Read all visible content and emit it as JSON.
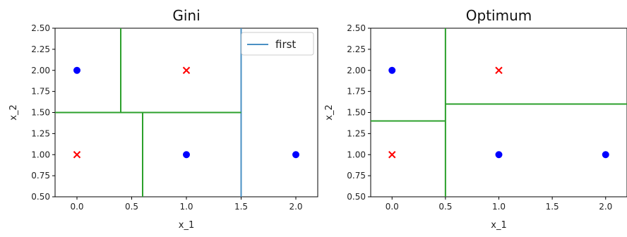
{
  "chart_data": [
    {
      "type": "scatter",
      "title": "Gini",
      "xlabel": "x_1",
      "ylabel": "x_2",
      "xlim": [
        -0.2,
        2.2
      ],
      "ylim": [
        0.5,
        2.5
      ],
      "xticks": [
        "0.0",
        "0.5",
        "1.0",
        "1.5",
        "2.0"
      ],
      "yticks": [
        "0.50",
        "0.75",
        "1.00",
        "1.25",
        "1.50",
        "1.75",
        "2.00",
        "2.25",
        "2.50"
      ],
      "points_circle": [
        {
          "x": 0,
          "y": 2
        },
        {
          "x": 1,
          "y": 1
        },
        {
          "x": 2,
          "y": 1
        }
      ],
      "points_cross": [
        {
          "x": 0,
          "y": 1
        },
        {
          "x": 1,
          "y": 2
        }
      ],
      "boundaries": [
        {
          "x1": 1.5,
          "y1": 0.5,
          "x2": 1.5,
          "y2": 2.5,
          "color": "#4a90c4"
        },
        {
          "x1": -0.2,
          "y1": 1.5,
          "x2": 1.5,
          "y2": 1.5,
          "color": "#2ca02c"
        },
        {
          "x1": 0.4,
          "y1": 1.5,
          "x2": 0.4,
          "y2": 2.5,
          "color": "#2ca02c"
        },
        {
          "x1": 0.6,
          "y1": 0.5,
          "x2": 0.6,
          "y2": 1.5,
          "color": "#2ca02c"
        }
      ],
      "legend": [
        {
          "label": "first",
          "color": "#4a90c4"
        }
      ],
      "legend_position": "top-right"
    },
    {
      "type": "scatter",
      "title": "Optimum",
      "xlabel": "x_1",
      "ylabel": "x_2",
      "xlim": [
        -0.2,
        2.2
      ],
      "ylim": [
        0.5,
        2.5
      ],
      "xticks": [
        "0.0",
        "0.5",
        "1.0",
        "1.5",
        "2.0"
      ],
      "yticks": [
        "0.50",
        "0.75",
        "1.00",
        "1.25",
        "1.50",
        "1.75",
        "2.00",
        "2.25",
        "2.50"
      ],
      "points_circle": [
        {
          "x": 0,
          "y": 2
        },
        {
          "x": 1,
          "y": 1
        },
        {
          "x": 2,
          "y": 1
        }
      ],
      "points_cross": [
        {
          "x": 0,
          "y": 1
        },
        {
          "x": 1,
          "y": 2
        }
      ],
      "boundaries": [
        {
          "x1": 0.5,
          "y1": 0.5,
          "x2": 0.5,
          "y2": 2.5,
          "color": "#2ca02c"
        },
        {
          "x1": -0.2,
          "y1": 1.4,
          "x2": 0.5,
          "y2": 1.4,
          "color": "#2ca02c"
        },
        {
          "x1": 0.5,
          "y1": 1.6,
          "x2": 2.2,
          "y2": 1.6,
          "color": "#2ca02c"
        }
      ],
      "legend": [],
      "legend_position": ""
    }
  ],
  "colors": {
    "circle_marker": "#0000ff",
    "cross_marker": "#ff0000",
    "axes": "#000000"
  }
}
